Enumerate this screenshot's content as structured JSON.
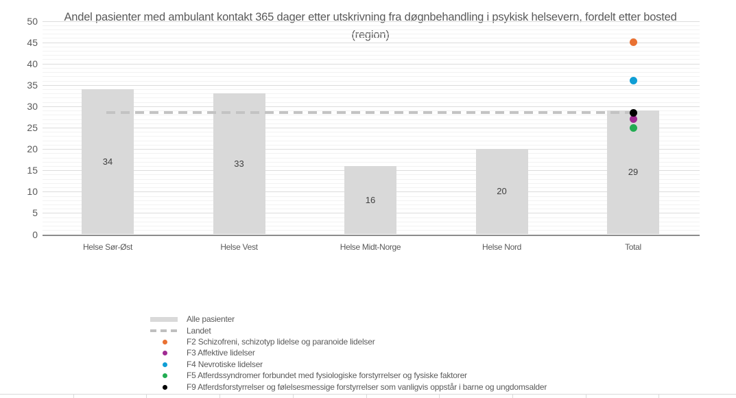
{
  "chart_data": {
    "type": "bar",
    "title": "Andel pasienter med ambulant kontakt 365 dager etter utskrivning fra døgnbehandling i psykisk helsevern, fordelt etter bosted (region)",
    "categories": [
      "Helse Sør-Øst",
      "Helse Vest",
      "Helse Midt-Norge",
      "Helse Nord",
      "Total"
    ],
    "ylim": [
      0,
      50
    ],
    "ytick_step": 5,
    "minor_grid_step": 1,
    "grid": true,
    "legend_position": "bottom-left",
    "series": [
      {
        "name": "Alle pasienter",
        "type": "bar",
        "color": "#D9D9D9",
        "values": [
          34,
          33,
          16,
          20,
          29
        ]
      },
      {
        "name": "Landet",
        "type": "dashed-line",
        "color": "#C3C3C3",
        "values": [
          28.5,
          28.5,
          28.5,
          28.5,
          28.5
        ]
      },
      {
        "name": "F2 Schizofreni, schizotyp lidelse og paranoide lidelser",
        "type": "point",
        "color": "#E97132",
        "points": [
          {
            "category": "Total",
            "value": 45
          }
        ]
      },
      {
        "name": "F3 Affektive lidelser",
        "type": "point",
        "color": "#A02B93",
        "points": [
          {
            "category": "Total",
            "value": 27
          }
        ]
      },
      {
        "name": "F4 Nevrotiske lidelser",
        "type": "point",
        "color": "#0F9ED5",
        "points": [
          {
            "category": "Total",
            "value": 36
          }
        ]
      },
      {
        "name": "F5 Atferdssyndromer forbundet med fysiologiske forstyrrelser og fysiske faktorer",
        "type": "point",
        "color": "#22AC52",
        "points": [
          {
            "category": "Total",
            "value": 25
          }
        ]
      },
      {
        "name": "F9 Atferdsforstyrrelser og følelsesmessige forstyrrelser som vanligvis oppstår i barne og ungdomsalder",
        "type": "point",
        "color": "#000000",
        "points": [
          {
            "category": "Total",
            "value": 28.5
          }
        ]
      }
    ]
  },
  "legend": {
    "items": [
      {
        "label": "Alle pasienter",
        "swatch": "bar",
        "color": "#D9D9D9"
      },
      {
        "label": "Landet",
        "swatch": "dash",
        "color": "#BFBFBF"
      },
      {
        "label": "F2 Schizofreni, schizotyp lidelse og paranoide lidelser",
        "swatch": "dot",
        "color": "#E97132"
      },
      {
        "label": "F3 Affektive lidelser",
        "swatch": "dot",
        "color": "#A02B93"
      },
      {
        "label": "F4 Nevrotiske lidelser",
        "swatch": "dot",
        "color": "#0F9ED5"
      },
      {
        "label": "F5 Atferdssyndromer forbundet med fysiologiske forstyrrelser og fysiske faktorer",
        "swatch": "dot",
        "color": "#22AC52"
      },
      {
        "label": "F9 Atferdsforstyrrelser og følelsesmessige forstyrrelser som vanligvis oppstår i barne og ungdomsalder",
        "swatch": "dot",
        "color": "#000000"
      }
    ]
  },
  "colors": {
    "bar_fill": "#D9D9D9",
    "bar_label": "#404040",
    "landet_line": "#C3C3C3",
    "grid_minor": "#F2F2F2",
    "grid_major": "#DCDCDC",
    "axis_line": "#8C8C8C",
    "axis_text": "#595959"
  },
  "partial_table": {
    "columns": 10
  }
}
